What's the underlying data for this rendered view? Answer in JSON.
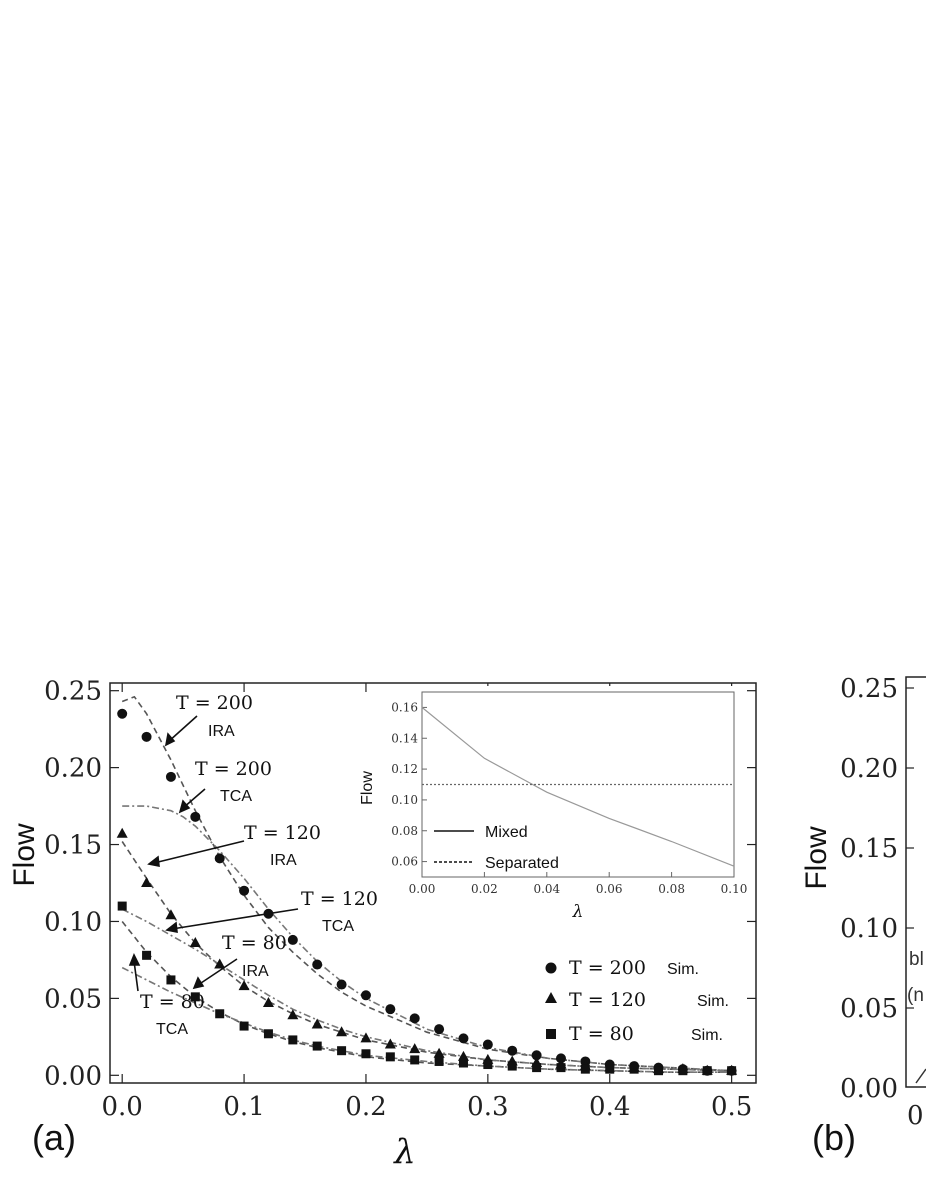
{
  "chart_data": [
    {
      "panel_label": "(a)",
      "type": "line",
      "ylabel": "Flow",
      "xlabel": "λ",
      "xlim": [
        -0.01,
        0.52
      ],
      "ylim": [
        -0.005,
        0.255
      ],
      "xticks": [
        "0.0",
        "0.1",
        "0.2",
        "0.3",
        "0.4",
        "0.5"
      ],
      "yticks": [
        "0.00",
        "0.05",
        "0.10",
        "0.15",
        "0.20",
        "0.25"
      ],
      "grid": false,
      "legend_position": "bottom-right",
      "legend": [
        {
          "label": "T = 200",
          "suffix": "Sim.",
          "marker": "circle"
        },
        {
          "label": "T = 120",
          "suffix": "Sim.",
          "marker": "triangle"
        },
        {
          "label": "T = 80",
          "suffix": "Sim.",
          "marker": "square"
        }
      ],
      "annotations": [
        {
          "main": "T = 200",
          "sub": "IRA"
        },
        {
          "main": "T = 200",
          "sub": "TCA"
        },
        {
          "main": "T = 120",
          "sub": "IRA"
        },
        {
          "main": "T = 120",
          "sub": "TCA"
        },
        {
          "main": "T = 80",
          "sub": "IRA"
        },
        {
          "main": "T = 80",
          "sub": "TCA"
        }
      ],
      "series": [
        {
          "T": 200,
          "kind": "IRA",
          "style": "dashed",
          "x": [
            0,
            0.01,
            0.02,
            0.04,
            0.06,
            0.08,
            0.1,
            0.12,
            0.14,
            0.16,
            0.18,
            0.2,
            0.25,
            0.3,
            0.35,
            0.4,
            0.45,
            0.5
          ],
          "y": [
            0.243,
            0.246,
            0.235,
            0.205,
            0.172,
            0.142,
            0.117,
            0.096,
            0.08,
            0.066,
            0.054,
            0.045,
            0.028,
            0.017,
            0.011,
            0.007,
            0.005,
            0.003
          ]
        },
        {
          "T": 200,
          "kind": "TCA",
          "style": "dash-dot",
          "x": [
            0,
            0.02,
            0.04,
            0.05,
            0.06,
            0.08,
            0.1,
            0.12,
            0.14,
            0.16,
            0.18,
            0.2,
            0.25,
            0.3,
            0.35,
            0.4,
            0.45,
            0.5
          ],
          "y": [
            0.175,
            0.175,
            0.172,
            0.168,
            0.162,
            0.146,
            0.128,
            0.108,
            0.09,
            0.074,
            0.061,
            0.05,
            0.03,
            0.018,
            0.011,
            0.007,
            0.005,
            0.003
          ]
        },
        {
          "T": 200,
          "kind": "Sim.",
          "style": "marker",
          "x": [
            0,
            0.02,
            0.04,
            0.06,
            0.08,
            0.1,
            0.12,
            0.14,
            0.16,
            0.18,
            0.2,
            0.22,
            0.24,
            0.26,
            0.28,
            0.3,
            0.32,
            0.34,
            0.36,
            0.38,
            0.4,
            0.42,
            0.44,
            0.46,
            0.48,
            0.5
          ],
          "y": [
            0.235,
            0.22,
            0.194,
            0.168,
            0.141,
            0.12,
            0.105,
            0.088,
            0.072,
            0.059,
            0.052,
            0.043,
            0.037,
            0.03,
            0.024,
            0.02,
            0.016,
            0.013,
            0.011,
            0.009,
            0.007,
            0.006,
            0.005,
            0.004,
            0.003,
            0.003
          ]
        },
        {
          "T": 120,
          "kind": "IRA",
          "style": "dashed",
          "x": [
            0,
            0.02,
            0.04,
            0.06,
            0.08,
            0.1,
            0.12,
            0.14,
            0.16,
            0.18,
            0.2,
            0.25,
            0.3,
            0.35,
            0.4,
            0.45,
            0.5
          ],
          "y": [
            0.152,
            0.128,
            0.105,
            0.086,
            0.071,
            0.058,
            0.048,
            0.04,
            0.033,
            0.028,
            0.023,
            0.015,
            0.01,
            0.007,
            0.005,
            0.004,
            0.003
          ]
        },
        {
          "T": 120,
          "kind": "TCA",
          "style": "dash-dot",
          "x": [
            0,
            0.02,
            0.04,
            0.06,
            0.08,
            0.1,
            0.12,
            0.14,
            0.16,
            0.18,
            0.2,
            0.25,
            0.3,
            0.35,
            0.4,
            0.45,
            0.5
          ],
          "y": [
            0.108,
            0.1,
            0.091,
            0.082,
            0.072,
            0.062,
            0.052,
            0.043,
            0.036,
            0.03,
            0.025,
            0.016,
            0.01,
            0.007,
            0.005,
            0.004,
            0.003
          ]
        },
        {
          "T": 120,
          "kind": "Sim.",
          "style": "marker",
          "x": [
            0,
            0.02,
            0.04,
            0.06,
            0.08,
            0.1,
            0.12,
            0.14,
            0.16,
            0.18,
            0.2,
            0.22,
            0.24,
            0.26,
            0.28,
            0.3,
            0.32,
            0.34,
            0.36,
            0.38,
            0.4,
            0.42,
            0.44,
            0.46,
            0.48,
            0.5
          ],
          "y": [
            0.157,
            0.125,
            0.104,
            0.086,
            0.072,
            0.058,
            0.047,
            0.039,
            0.033,
            0.028,
            0.024,
            0.02,
            0.017,
            0.014,
            0.012,
            0.01,
            0.009,
            0.008,
            0.007,
            0.006,
            0.005,
            0.005,
            0.004,
            0.004,
            0.003,
            0.003
          ]
        },
        {
          "T": 80,
          "kind": "IRA",
          "style": "dashed",
          "x": [
            0,
            0.02,
            0.04,
            0.06,
            0.08,
            0.1,
            0.12,
            0.14,
            0.16,
            0.18,
            0.2,
            0.25,
            0.3,
            0.35,
            0.4,
            0.45,
            0.5
          ],
          "y": [
            0.1,
            0.08,
            0.064,
            0.051,
            0.041,
            0.033,
            0.027,
            0.022,
            0.018,
            0.015,
            0.012,
            0.008,
            0.006,
            0.004,
            0.003,
            0.002,
            0.002
          ]
        },
        {
          "T": 80,
          "kind": "TCA",
          "style": "dash-dot",
          "x": [
            0,
            0.02,
            0.04,
            0.06,
            0.08,
            0.1,
            0.12,
            0.14,
            0.16,
            0.18,
            0.2,
            0.25,
            0.3,
            0.35,
            0.4,
            0.45,
            0.5
          ],
          "y": [
            0.07,
            0.062,
            0.054,
            0.047,
            0.04,
            0.034,
            0.028,
            0.023,
            0.019,
            0.016,
            0.013,
            0.009,
            0.006,
            0.004,
            0.003,
            0.002,
            0.002
          ]
        },
        {
          "T": 80,
          "kind": "Sim.",
          "style": "marker",
          "x": [
            0,
            0.02,
            0.04,
            0.06,
            0.08,
            0.1,
            0.12,
            0.14,
            0.16,
            0.18,
            0.2,
            0.22,
            0.24,
            0.26,
            0.28,
            0.3,
            0.32,
            0.34,
            0.36,
            0.38,
            0.4,
            0.42,
            0.44,
            0.46,
            0.48,
            0.5
          ],
          "y": [
            0.11,
            0.078,
            0.062,
            0.051,
            0.04,
            0.032,
            0.027,
            0.023,
            0.019,
            0.016,
            0.014,
            0.012,
            0.01,
            0.009,
            0.008,
            0.007,
            0.006,
            0.005,
            0.005,
            0.004,
            0.004,
            0.004,
            0.003,
            0.003,
            0.003,
            0.003
          ]
        }
      ],
      "inset": {
        "type": "line",
        "ylabel": "Flow",
        "xlabel": "λ",
        "xlim": [
          0,
          0.1
        ],
        "ylim": [
          0.05,
          0.17
        ],
        "xticks": [
          "0.00",
          "0.02",
          "0.04",
          "0.06",
          "0.08",
          "0.10"
        ],
        "yticks": [
          "0.06",
          "0.08",
          "0.10",
          "0.12",
          "0.14",
          "0.16"
        ],
        "legend": [
          {
            "label": "Mixed",
            "style": "solid"
          },
          {
            "label": "Separated",
            "style": "dashed"
          }
        ],
        "series": [
          {
            "name": "Mixed",
            "x": [
              0,
              0.02,
              0.04,
              0.06,
              0.08,
              0.1
            ],
            "y": [
              0.16,
              0.127,
              0.105,
              0.088,
              0.073,
              0.057
            ]
          },
          {
            "name": "Separated",
            "x": [
              0,
              0.1
            ],
            "y": [
              0.11,
              0.11
            ]
          }
        ]
      }
    },
    {
      "panel_label": "(b)",
      "type": "line",
      "ylabel": "Flow",
      "yticks": [
        "0.25",
        "0.20",
        "0.15",
        "0.10",
        "0.05",
        "0.00"
      ],
      "xticks": [
        "0"
      ],
      "fragment_text": [
        "bl",
        "(n"
      ]
    }
  ]
}
